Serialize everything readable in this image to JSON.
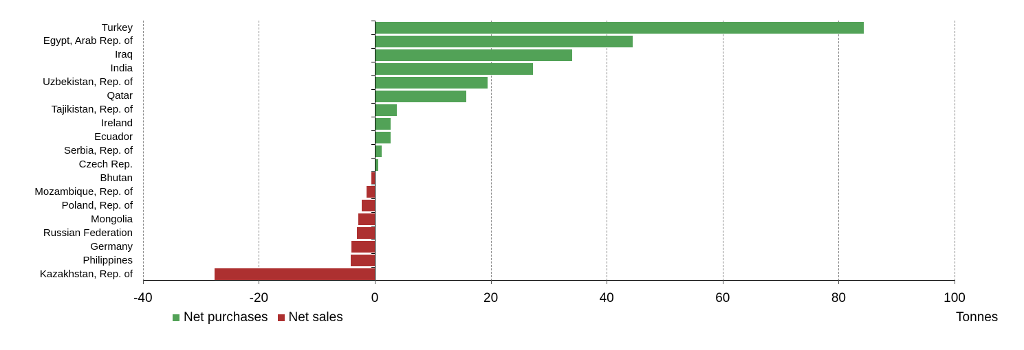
{
  "chart_data": {
    "type": "bar",
    "orientation": "horizontal",
    "title": "",
    "xlabel": "Tonnes",
    "ylabel": "",
    "xlim": [
      -40,
      100
    ],
    "xticks": [
      -40,
      -20,
      0,
      20,
      40,
      60,
      80,
      100
    ],
    "grid": "vertical dashed",
    "legend_position": "bottom-left",
    "categories": [
      "Turkey",
      "Egypt, Arab Rep. of",
      "Iraq",
      "India",
      "Uzbekistan, Rep. of",
      "Qatar",
      "Tajikistan, Rep. of",
      "Ireland",
      "Ecuador",
      "Serbia, Rep. of",
      "Czech Rep.",
      "Bhutan",
      "Mozambique, Rep. of",
      "Poland, Rep. of",
      "Mongolia",
      "Russian Federation",
      "Germany",
      "Philippines",
      "Kazakhstan, Rep. of"
    ],
    "values": [
      84.2,
      44.4,
      33.9,
      27.2,
      19.3,
      15.6,
      3.7,
      2.6,
      2.6,
      1.1,
      0.5,
      -0.6,
      -1.4,
      -2.2,
      -2.8,
      -3.1,
      -4.0,
      -4.1,
      -27.6
    ],
    "series": [
      {
        "name": "Net purchases",
        "color": "#52a257",
        "categories": [
          "Turkey",
          "Egypt, Arab Rep. of",
          "Iraq",
          "India",
          "Uzbekistan, Rep. of",
          "Qatar",
          "Tajikistan, Rep. of",
          "Ireland",
          "Ecuador",
          "Serbia, Rep. of",
          "Czech Rep."
        ],
        "values": [
          84.2,
          44.4,
          33.9,
          27.2,
          19.3,
          15.6,
          3.7,
          2.6,
          2.6,
          1.1,
          0.5
        ]
      },
      {
        "name": "Net sales",
        "color": "#ad3030",
        "categories": [
          "Bhutan",
          "Mozambique, Rep. of",
          "Poland, Rep. of",
          "Mongolia",
          "Russian Federation",
          "Germany",
          "Philippines",
          "Kazakhstan, Rep. of"
        ],
        "values": [
          -0.6,
          -1.4,
          -2.2,
          -2.8,
          -3.1,
          -4.0,
          -4.1,
          -27.6
        ]
      }
    ]
  },
  "legend": {
    "items": [
      {
        "label": "Net purchases",
        "color": "#52a257"
      },
      {
        "label": "Net sales",
        "color": "#ad3030"
      }
    ]
  },
  "axis": {
    "unit_label": "Tonnes",
    "tick_labels": [
      "-40",
      "-20",
      "0",
      "20",
      "40",
      "60",
      "80",
      "100"
    ]
  },
  "colors": {
    "positive": "#52a257",
    "negative": "#ad3030",
    "grid": "#8a8a8a",
    "axis": "#000000"
  }
}
